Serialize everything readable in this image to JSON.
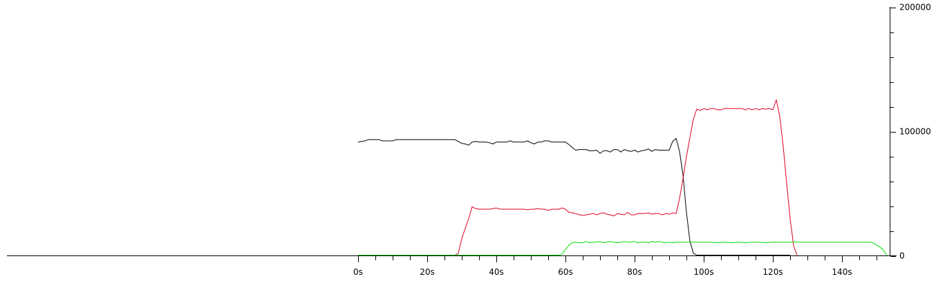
{
  "chart_data": {
    "type": "line",
    "title": "",
    "xlabel": "",
    "ylabel": "",
    "xlim": [
      0,
      153
    ],
    "ylim": [
      0,
      200000
    ],
    "x_tick_labels": [
      "0s",
      "20s",
      "40s",
      "60s",
      "80s",
      "100s",
      "120s",
      "140s"
    ],
    "x_ticks": [
      0,
      20,
      40,
      60,
      80,
      100,
      120,
      140
    ],
    "y_tick_labels": [
      "0",
      "100000",
      "200000"
    ],
    "y_ticks": [
      0,
      100000,
      200000
    ],
    "grid": false,
    "legend": "none",
    "series": [
      {
        "color": "#000000",
        "points": [
          [
            0,
            91500
          ],
          [
            1,
            92000
          ],
          [
            2,
            92500
          ],
          [
            3,
            93500
          ],
          [
            4,
            93500
          ],
          [
            5,
            93500
          ],
          [
            6,
            93500
          ],
          [
            7,
            92500
          ],
          [
            8,
            92500
          ],
          [
            9,
            92500
          ],
          [
            10,
            92500
          ],
          [
            11,
            93500
          ],
          [
            12,
            93500
          ],
          [
            13,
            93500
          ],
          [
            14,
            93500
          ],
          [
            16,
            93500
          ],
          [
            18,
            93500
          ],
          [
            20,
            93500
          ],
          [
            22,
            93500
          ],
          [
            24,
            93500
          ],
          [
            26,
            93500
          ],
          [
            28,
            93500
          ],
          [
            29,
            92000
          ],
          [
            30,
            90500
          ],
          [
            31,
            90000
          ],
          [
            32,
            89000
          ],
          [
            33,
            91500
          ],
          [
            34,
            92000
          ],
          [
            35,
            91500
          ],
          [
            36,
            91500
          ],
          [
            37,
            91500
          ],
          [
            38,
            91000
          ],
          [
            39,
            90000
          ],
          [
            40,
            91500
          ],
          [
            41,
            91500
          ],
          [
            42,
            91500
          ],
          [
            43,
            91500
          ],
          [
            44,
            92500
          ],
          [
            45,
            91500
          ],
          [
            46,
            91500
          ],
          [
            47,
            91500
          ],
          [
            48,
            91500
          ],
          [
            49,
            92500
          ],
          [
            50,
            91000
          ],
          [
            51,
            90000
          ],
          [
            52,
            91500
          ],
          [
            53,
            91500
          ],
          [
            54,
            92500
          ],
          [
            55,
            92500
          ],
          [
            56,
            91500
          ],
          [
            57,
            91500
          ],
          [
            58,
            91500
          ],
          [
            59,
            91500
          ],
          [
            60,
            91500
          ],
          [
            61,
            89500
          ],
          [
            62,
            87000
          ],
          [
            63,
            85000
          ],
          [
            64,
            85500
          ],
          [
            65,
            85500
          ],
          [
            66,
            85500
          ],
          [
            67,
            84500
          ],
          [
            68,
            84500
          ],
          [
            69,
            85000
          ],
          [
            70,
            82500
          ],
          [
            71,
            84500
          ],
          [
            72,
            84500
          ],
          [
            73,
            83500
          ],
          [
            74,
            85500
          ],
          [
            75,
            85500
          ],
          [
            76,
            83500
          ],
          [
            77,
            85500
          ],
          [
            78,
            84500
          ],
          [
            79,
            84000
          ],
          [
            80,
            85000
          ],
          [
            81,
            83500
          ],
          [
            82,
            84500
          ],
          [
            83,
            85000
          ],
          [
            84,
            86000
          ],
          [
            85,
            84000
          ],
          [
            86,
            85500
          ],
          [
            87,
            85000
          ],
          [
            88,
            85000
          ],
          [
            89,
            85000
          ],
          [
            90,
            85000
          ],
          [
            91,
            92000
          ],
          [
            92,
            94500
          ],
          [
            93,
            84000
          ],
          [
            94,
            65000
          ],
          [
            95,
            35000
          ],
          [
            96,
            12000
          ],
          [
            97,
            2000
          ],
          [
            98,
            500
          ],
          [
            100,
            500
          ],
          [
            110,
            500
          ],
          [
            120,
            500
          ],
          [
            125,
            500
          ]
        ]
      },
      {
        "color": "#dd0022",
        "points": [
          [
            0,
            500
          ],
          [
            10,
            500
          ],
          [
            20,
            500
          ],
          [
            28,
            500
          ],
          [
            29,
            2000
          ],
          [
            30,
            14000
          ],
          [
            31,
            22000
          ],
          [
            32,
            30000
          ],
          [
            33,
            39500
          ],
          [
            34,
            38000
          ],
          [
            35,
            37500
          ],
          [
            36,
            37500
          ],
          [
            37,
            37500
          ],
          [
            38,
            37500
          ],
          [
            39,
            38000
          ],
          [
            40,
            38500
          ],
          [
            41,
            37500
          ],
          [
            42,
            37500
          ],
          [
            44,
            37500
          ],
          [
            46,
            37500
          ],
          [
            48,
            37500
          ],
          [
            49,
            37000
          ],
          [
            50,
            37500
          ],
          [
            51,
            37500
          ],
          [
            52,
            38000
          ],
          [
            53,
            37500
          ],
          [
            54,
            37500
          ],
          [
            55,
            36500
          ],
          [
            56,
            37500
          ],
          [
            57,
            37500
          ],
          [
            58,
            37500
          ],
          [
            59,
            38500
          ],
          [
            60,
            37500
          ],
          [
            61,
            35000
          ],
          [
            62,
            34500
          ],
          [
            63,
            34000
          ],
          [
            64,
            33000
          ],
          [
            65,
            32500
          ],
          [
            66,
            33000
          ],
          [
            67,
            33500
          ],
          [
            68,
            34000
          ],
          [
            69,
            33000
          ],
          [
            70,
            34000
          ],
          [
            71,
            34500
          ],
          [
            72,
            33500
          ],
          [
            73,
            33000
          ],
          [
            74,
            32000
          ],
          [
            75,
            34000
          ],
          [
            76,
            33500
          ],
          [
            77,
            33000
          ],
          [
            78,
            35000
          ],
          [
            79,
            33000
          ],
          [
            80,
            33000
          ],
          [
            81,
            34000
          ],
          [
            82,
            34000
          ],
          [
            83,
            34000
          ],
          [
            84,
            34500
          ],
          [
            85,
            33500
          ],
          [
            86,
            34000
          ],
          [
            87,
            34000
          ],
          [
            88,
            33000
          ],
          [
            89,
            34000
          ],
          [
            90,
            33500
          ],
          [
            91,
            34500
          ],
          [
            92,
            34000
          ],
          [
            93,
            46000
          ],
          [
            94,
            62000
          ],
          [
            95,
            80000
          ],
          [
            96,
            95000
          ],
          [
            97,
            110000
          ],
          [
            98,
            118000
          ],
          [
            99,
            117000
          ],
          [
            100,
            118500
          ],
          [
            101,
            117500
          ],
          [
            102,
            118500
          ],
          [
            103,
            118500
          ],
          [
            104,
            117500
          ],
          [
            105,
            117500
          ],
          [
            106,
            118500
          ],
          [
            107,
            118500
          ],
          [
            108,
            118500
          ],
          [
            109,
            118500
          ],
          [
            110,
            118500
          ],
          [
            111,
            118500
          ],
          [
            112,
            117500
          ],
          [
            113,
            118500
          ],
          [
            114,
            117500
          ],
          [
            115,
            118500
          ],
          [
            116,
            117500
          ],
          [
            117,
            118500
          ],
          [
            118,
            118000
          ],
          [
            119,
            118500
          ],
          [
            120,
            117500
          ],
          [
            121,
            125500
          ],
          [
            122,
            112000
          ],
          [
            123,
            88000
          ],
          [
            124,
            58000
          ],
          [
            125,
            30000
          ],
          [
            126,
            8000
          ],
          [
            127,
            500
          ]
        ]
      },
      {
        "color": "#00dd00",
        "points": [
          [
            0,
            500
          ],
          [
            10,
            500
          ],
          [
            20,
            500
          ],
          [
            30,
            500
          ],
          [
            40,
            500
          ],
          [
            50,
            500
          ],
          [
            57,
            500
          ],
          [
            58,
            500
          ],
          [
            59,
            1500
          ],
          [
            60,
            5000
          ],
          [
            61,
            8500
          ],
          [
            62,
            10500
          ],
          [
            63,
            11000
          ],
          [
            64,
            10500
          ],
          [
            65,
            10500
          ],
          [
            66,
            11500
          ],
          [
            67,
            10500
          ],
          [
            68,
            11000
          ],
          [
            69,
            11000
          ],
          [
            70,
            11500
          ],
          [
            71,
            10500
          ],
          [
            72,
            11000
          ],
          [
            73,
            11500
          ],
          [
            74,
            11000
          ],
          [
            75,
            10500
          ],
          [
            76,
            11000
          ],
          [
            77,
            11500
          ],
          [
            78,
            11000
          ],
          [
            79,
            11000
          ],
          [
            80,
            11500
          ],
          [
            81,
            10500
          ],
          [
            82,
            11000
          ],
          [
            83,
            11000
          ],
          [
            84,
            10500
          ],
          [
            85,
            11500
          ],
          [
            86,
            11000
          ],
          [
            87,
            11500
          ],
          [
            88,
            11000
          ],
          [
            89,
            10500
          ],
          [
            90,
            11000
          ],
          [
            91,
            10500
          ],
          [
            92,
            11000
          ],
          [
            94,
            11000
          ],
          [
            96,
            11000
          ],
          [
            98,
            11000
          ],
          [
            100,
            11000
          ],
          [
            102,
            11000
          ],
          [
            104,
            10500
          ],
          [
            106,
            11000
          ],
          [
            108,
            10500
          ],
          [
            110,
            11000
          ],
          [
            112,
            10500
          ],
          [
            114,
            11000
          ],
          [
            116,
            11000
          ],
          [
            118,
            10500
          ],
          [
            120,
            11000
          ],
          [
            122,
            11000
          ],
          [
            124,
            11000
          ],
          [
            126,
            11000
          ],
          [
            128,
            11000
          ],
          [
            130,
            11000
          ],
          [
            132,
            11000
          ],
          [
            134,
            11000
          ],
          [
            136,
            11000
          ],
          [
            138,
            11000
          ],
          [
            140,
            11000
          ],
          [
            142,
            11000
          ],
          [
            144,
            11000
          ],
          [
            146,
            11000
          ],
          [
            148,
            11000
          ],
          [
            149,
            10500
          ],
          [
            150,
            8500
          ],
          [
            151,
            7000
          ],
          [
            152,
            4500
          ],
          [
            153,
            500
          ]
        ]
      }
    ]
  }
}
